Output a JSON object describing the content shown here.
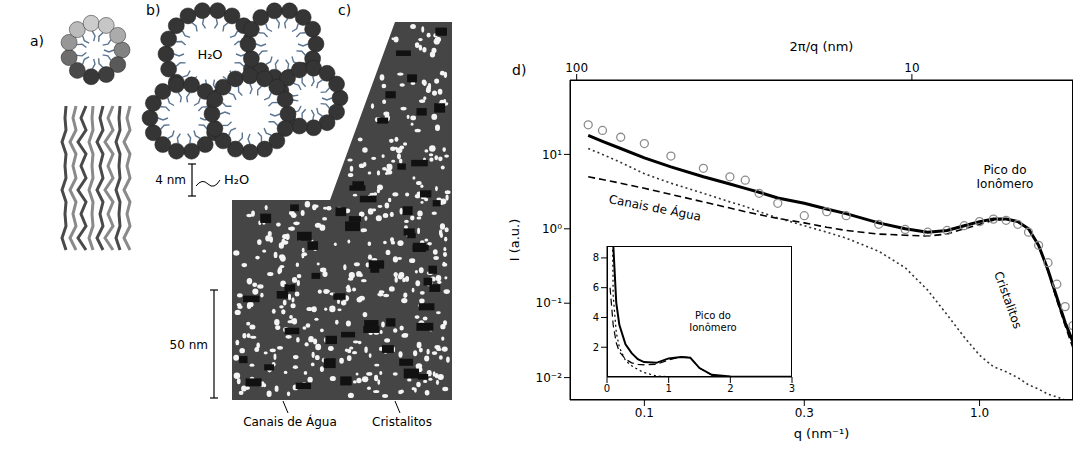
{
  "panels": {
    "a": {
      "label": "a)"
    },
    "b": {
      "label": "b)",
      "texts": [
        "H₂O",
        "H₂O"
      ],
      "scale_bar": "4 nm"
    },
    "c": {
      "label": "c)",
      "scale_bar": "50 nm",
      "labels": [
        "Canais de Água",
        "Cristalitos"
      ]
    },
    "d": {
      "label": "d)"
    }
  },
  "chart_data": {
    "type": "line",
    "x_label": "q (nm⁻¹)",
    "x2_label": "2π/q (nm)",
    "y_label": "I (a.u.)",
    "log": true,
    "xlim": [
      0.06,
      1.9
    ],
    "xticks": [
      0.1,
      0.3,
      {
        "value": 1,
        "label": "1.0"
      }
    ],
    "x2lim": [
      104.7,
      3.307
    ],
    "x2ticks": [
      100,
      10
    ],
    "ylim": [
      0.005,
      100
    ],
    "yticks": [
      {
        "value": 0.01,
        "label": "10⁻²"
      },
      {
        "value": 0.1,
        "label": "10⁻¹"
      },
      {
        "value": 1,
        "label": "10⁰"
      },
      {
        "value": 10,
        "label": "10¹"
      }
    ],
    "x": [
      0.068,
      0.075,
      0.085,
      0.1,
      0.12,
      0.15,
      0.18,
      0.2,
      0.22,
      0.25,
      0.3,
      0.35,
      0.4,
      0.5,
      0.6,
      0.7,
      0.8,
      0.9,
      1.0,
      1.1,
      1.2,
      1.3,
      1.4,
      1.5,
      1.6,
      1.7,
      1.8,
      1.9
    ],
    "series": [
      {
        "type": "scatter",
        "marker": "circle",
        "color": "#8c8c8c",
        "values": [
          25,
          21,
          17,
          14,
          9.5,
          6.5,
          5,
          4.5,
          3.0,
          2.2,
          1.5,
          1.7,
          1.5,
          1.15,
          0.98,
          0.9,
          0.95,
          1.1,
          1.25,
          1.35,
          1.3,
          1.15,
          0.9,
          0.6,
          0.35,
          0.18,
          0.09,
          0.05
        ]
      },
      {
        "type": "line",
        "line_style": "solid",
        "color": "#000000",
        "values": [
          18,
          15,
          12,
          9,
          6.8,
          5,
          4,
          3.5,
          3.1,
          2.6,
          2.2,
          1.85,
          1.6,
          1.2,
          1.0,
          0.9,
          0.95,
          1.1,
          1.25,
          1.35,
          1.35,
          1.25,
          1.0,
          0.6,
          0.28,
          0.12,
          0.055,
          0.03
        ]
      },
      {
        "type": "line",
        "name": "Canais de Água",
        "line_style": "dashed",
        "color": "#000000",
        "values": [
          5,
          4.6,
          4.1,
          3.5,
          2.9,
          2.3,
          1.9,
          1.7,
          1.55,
          1.38,
          1.2,
          1.05,
          0.95,
          0.85,
          0.82,
          0.8,
          0.85,
          1.0,
          1.15,
          1.3,
          1.35,
          1.25,
          1.0,
          0.6,
          0.27,
          0.11,
          0.05,
          0.025
        ]
      },
      {
        "type": "line",
        "name": "Cristalitos",
        "line_style": "dotted",
        "color": "#333333",
        "values": [
          12,
          10,
          7.8,
          5.5,
          4.1,
          3,
          2.3,
          2,
          1.7,
          1.4,
          1.1,
          0.9,
          0.75,
          0.5,
          0.3,
          0.15,
          0.07,
          0.035,
          0.02,
          0.014,
          0.012,
          0.01,
          0.008,
          0.007,
          0.006,
          0.0055,
          0.005,
          0.005
        ]
      }
    ],
    "annotations": [
      "Pico do Ionômero"
    ],
    "inset": {
      "type": "line",
      "xlim": [
        0,
        3
      ],
      "xticks": [
        0,
        1,
        2,
        3
      ],
      "ylim": [
        0,
        8.8
      ],
      "yticks": [
        2,
        4,
        6,
        8
      ],
      "x": [
        0.05,
        0.1,
        0.15,
        0.2,
        0.3,
        0.4,
        0.5,
        0.6,
        0.8,
        1.0,
        1.2,
        1.35,
        1.5,
        1.7,
        2.0,
        2.5,
        3.0
      ],
      "series": [
        {
          "line_style": "solid",
          "color": "#000000",
          "values": [
            30,
            9,
            5,
            3.5,
            2.2,
            1.6,
            1.2,
            1.0,
            0.95,
            1.25,
            1.35,
            1.3,
            0.6,
            0.15,
            0.03,
            0.01,
            0.01
          ]
        },
        {
          "line_style": "dashed",
          "color": "#000000",
          "values": [
            6,
            3.5,
            2.3,
            1.7,
            1.2,
            0.95,
            0.85,
            0.82,
            0.85,
            1.15,
            1.35,
            1.3,
            0.6,
            0.12,
            0.03,
            0.01,
            0.01
          ]
        },
        {
          "line_style": "dotted",
          "color": "#000000",
          "values": [
            25,
            5.5,
            3,
            2,
            1.1,
            0.75,
            0.5,
            0.3,
            0.07,
            0.02,
            0.012,
            0.01,
            0.008,
            0.006,
            0.005,
            0.004,
            0.003
          ]
        }
      ],
      "annotations": [
        "Pico do Ionômero"
      ]
    }
  }
}
